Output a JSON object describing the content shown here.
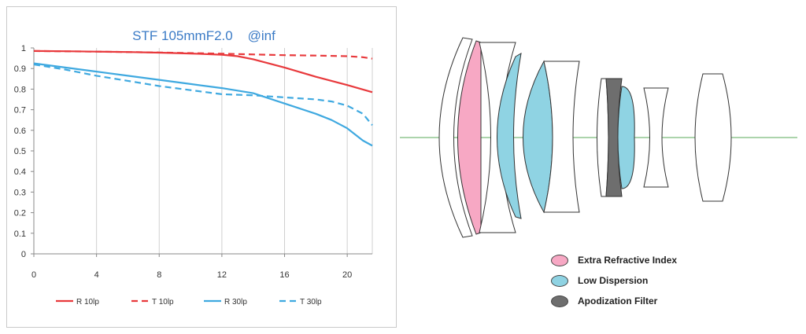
{
  "chart_data": {
    "type": "line",
    "title": "STF 105mmF2.0    @inf",
    "xlabel": "",
    "ylabel": "",
    "xlim": [
      0,
      21.6
    ],
    "ylim": [
      0,
      1
    ],
    "x_ticks": [
      0,
      4,
      8,
      12,
      16,
      20
    ],
    "y_ticks": [
      0,
      0.1,
      0.2,
      0.3,
      0.4,
      0.5,
      0.6,
      0.7,
      0.8,
      0.9,
      1
    ],
    "y_tick_labels": [
      "0",
      "0.1",
      "0.2",
      "0.3",
      "0.4",
      "0.5",
      "0.6",
      "0.7",
      "0.8",
      "0.9",
      "1"
    ],
    "grid": "vertical",
    "legend_position": "bottom",
    "series": [
      {
        "name": "R 10lp",
        "color": "#e8393c",
        "dash": "solid",
        "x": [
          0,
          2,
          4,
          6,
          8,
          10,
          12,
          13,
          14,
          16,
          18,
          20,
          21.6
        ],
        "y": [
          0.985,
          0.984,
          0.982,
          0.98,
          0.977,
          0.973,
          0.967,
          0.96,
          0.945,
          0.905,
          0.86,
          0.82,
          0.785
        ]
      },
      {
        "name": "T 10lp",
        "color": "#e8393c",
        "dash": "dashed",
        "x": [
          0,
          4,
          8,
          12,
          16,
          18,
          20,
          21,
          21.6
        ],
        "y": [
          0.985,
          0.982,
          0.978,
          0.972,
          0.965,
          0.963,
          0.96,
          0.955,
          0.948
        ]
      },
      {
        "name": "R 30lp",
        "color": "#3fa9e0",
        "dash": "solid",
        "x": [
          0,
          2,
          4,
          6,
          8,
          10,
          12,
          14,
          16,
          18,
          19,
          20,
          21,
          21.6
        ],
        "y": [
          0.925,
          0.905,
          0.885,
          0.865,
          0.845,
          0.825,
          0.805,
          0.78,
          0.73,
          0.68,
          0.65,
          0.61,
          0.55,
          0.525
        ]
      },
      {
        "name": "T 30lp",
        "color": "#3fa9e0",
        "dash": "dashed",
        "x": [
          0,
          2,
          4,
          6,
          8,
          10,
          12,
          14,
          16,
          18,
          19,
          20,
          21,
          21.6
        ],
        "y": [
          0.92,
          0.895,
          0.865,
          0.84,
          0.815,
          0.795,
          0.775,
          0.77,
          0.76,
          0.75,
          0.74,
          0.72,
          0.68,
          0.625
        ]
      }
    ]
  },
  "lens_legend": [
    {
      "label": "Extra Refractive Index",
      "color": "#f7a8c4"
    },
    {
      "label": "Low Dispersion",
      "color": "#8fd3e3"
    },
    {
      "label": "Apodization Filter",
      "color": "#6e6e6e"
    }
  ],
  "lens_colors": {
    "clear": "#ffffff",
    "outline": "#333333",
    "axis": "#5aa95a"
  }
}
